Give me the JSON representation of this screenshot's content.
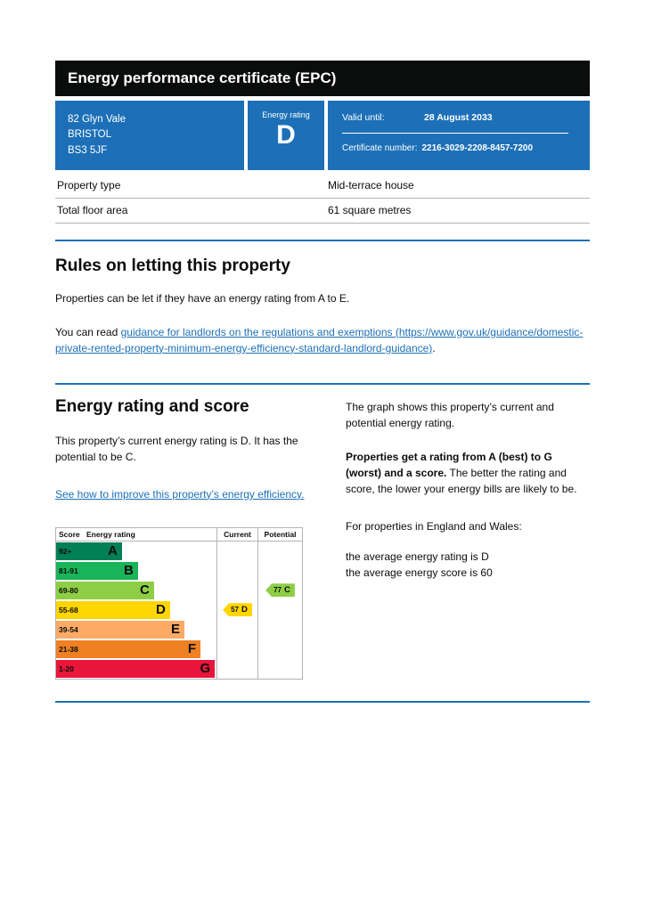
{
  "page": {
    "title": "Energy performance certificate (EPC)"
  },
  "summary": {
    "address_lines": [
      "82 Glyn Vale",
      "BRISTOL",
      "BS3 5JF"
    ],
    "energy_rating_label": "Energy rating",
    "energy_rating": "D",
    "valid_until_label": "Valid until:",
    "valid_until": "28 August 2033",
    "certificate_number_label": "Certificate number:",
    "certificate_number": "2216-3029-2208-8457-7200"
  },
  "property_details": {
    "rows": [
      {
        "label": "Property type",
        "value": "Mid-terrace house"
      },
      {
        "label": "Total floor area",
        "value": "61 square metres"
      }
    ]
  },
  "rules": {
    "heading": "Rules on letting this property",
    "paragraph1": "Properties can be let if they have an energy rating from A to E.",
    "paragraph2_prefix": "You can read ",
    "link_text": "guidance for landlords on the regulations and exemptions (https://www.gov.uk/guidance/domestic-private-rented-property-minimum-energy-efficiency-standard-landlord-guidance)",
    "paragraph2_suffix": "."
  },
  "energy": {
    "heading": "Energy rating and score",
    "intro": "This property’s current energy rating is D. It has the potential to be C.",
    "improve_link": "See how to improve this property’s energy efficiency.",
    "right": {
      "p1": "The graph shows this property’s current and potential energy rating.",
      "p2_bold": "Properties get a rating from A (best) to G (worst) and a score.",
      "p2_rest": "The better the rating and score, the lower your energy bills are likely to be.",
      "p3": "For properties in England and Wales:",
      "avg_rating": "the average energy rating is D",
      "avg_score": "the average energy score is 60"
    }
  },
  "chart_data": {
    "type": "bar",
    "title": "Energy rating and score chart",
    "columns": [
      "Score",
      "Energy rating",
      "Current",
      "Potential"
    ],
    "bands": [
      {
        "score": "92+",
        "letter": "A",
        "color": "#008054",
        "width_pct": 41
      },
      {
        "score": "81-91",
        "letter": "B",
        "color": "#19b459",
        "width_pct": 51
      },
      {
        "score": "69-80",
        "letter": "C",
        "color": "#8dce46",
        "width_pct": 61
      },
      {
        "score": "55-68",
        "letter": "D",
        "color": "#ffd500",
        "width_pct": 71
      },
      {
        "score": "39-54",
        "letter": "E",
        "color": "#fcaa65",
        "width_pct": 80
      },
      {
        "score": "21-38",
        "letter": "F",
        "color": "#ef8023",
        "width_pct": 90
      },
      {
        "score": "1-20",
        "letter": "G",
        "color": "#e9153b",
        "width_pct": 99
      }
    ],
    "current": {
      "score": 57,
      "letter": "D",
      "band_index": 3,
      "color": "#ffd500"
    },
    "potential": {
      "score": 77,
      "letter": "C",
      "band_index": 2,
      "color": "#8dce46"
    }
  },
  "colors": {
    "govuk_blue": "#1d70b8",
    "header_black": "#0b0c0c",
    "border_grey": "#b1b4b6"
  }
}
